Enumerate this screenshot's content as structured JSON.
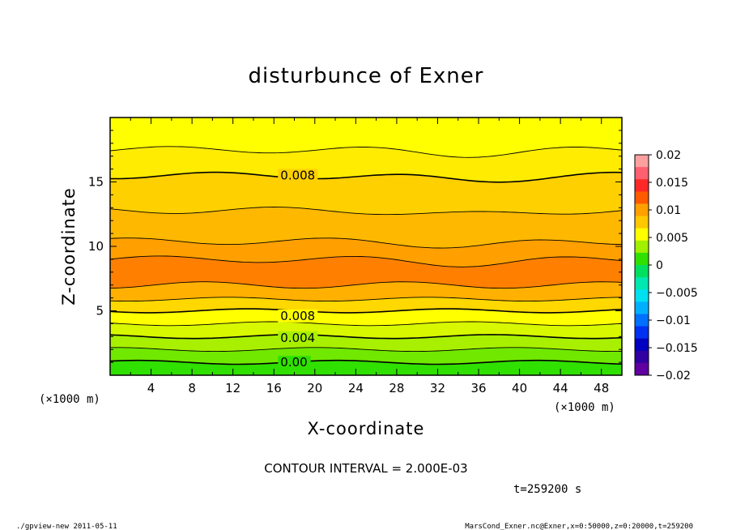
{
  "chart_data": {
    "type": "heatmap",
    "title": "disturbunce of Exner",
    "xlabel": "X-coordinate",
    "ylabel": "Z-coordinate",
    "x_unit_left": "(×1000 m)",
    "x_unit_right": "(×1000 m)",
    "xlim": [
      0,
      50
    ],
    "ylim": [
      0,
      20
    ],
    "xticks": [
      4,
      8,
      12,
      16,
      20,
      24,
      28,
      32,
      36,
      40,
      44,
      48
    ],
    "yticks": [
      5,
      10,
      15
    ],
    "contour_labels": [
      {
        "text": "0.008",
        "x": 16.4,
        "z": 15.5
      },
      {
        "text": "0.008",
        "x": 16.4,
        "z": 4.6
      },
      {
        "text": "0.004",
        "x": 16.4,
        "z": 2.9
      },
      {
        "text": "0.00",
        "x": 16.4,
        "z": 1.0
      }
    ],
    "contour_interval_text": "CONTOUR INTERVAL = 2.000E-03",
    "colorbar": {
      "min": -0.02,
      "max": 0.02,
      "tick_values": [
        0.02,
        0.015,
        0.01,
        0.005,
        0,
        -0.005,
        -0.01,
        -0.015,
        -0.02
      ],
      "tick_labels": [
        "0.02",
        "0.015",
        "0.01",
        "0.005",
        "0",
        "−0.005",
        "−0.01",
        "−0.015",
        "−0.02"
      ],
      "colors": [
        "#ffa0a0",
        "#ff6070",
        "#ff2828",
        "#ff5a00",
        "#ffa000",
        "#ffc800",
        "#ffff00",
        "#a0f000",
        "#30e000",
        "#00e060",
        "#00e8b0",
        "#00e0f0",
        "#00b0ff",
        "#0070ff",
        "#0030f0",
        "#0000c0",
        "#3000a0",
        "#6000a0"
      ]
    },
    "bands": [
      {
        "z_top": 1.0,
        "color": "#30e000"
      },
      {
        "z_top": 2.0,
        "color": "#70e800"
      },
      {
        "z_top": 3.0,
        "color": "#a8f000"
      },
      {
        "z_top": 4.0,
        "color": "#d8f800"
      },
      {
        "z_top": 5.0,
        "color": "#ffff00"
      },
      {
        "z_top": 5.9,
        "color": "#ffd800"
      },
      {
        "z_top": 7.0,
        "color": "#ffb000"
      },
      {
        "z_top": 9.0,
        "color": "#ff8000"
      },
      {
        "z_top": 10.4,
        "color": "#ffa000"
      },
      {
        "z_top": 12.8,
        "color": "#ffb800"
      },
      {
        "z_top": 15.5,
        "color": "#ffd000"
      },
      {
        "z_top": 17.5,
        "color": "#ffec00"
      },
      {
        "z_top": 20.0,
        "color": "#ffff00"
      }
    ]
  },
  "time_label": "t=259200 s",
  "footer_left": "./gpview-new  2011-05-11",
  "footer_right": "MarsCond_Exner.nc@Exner,x=0:50000,z=0:20000,t=259200"
}
